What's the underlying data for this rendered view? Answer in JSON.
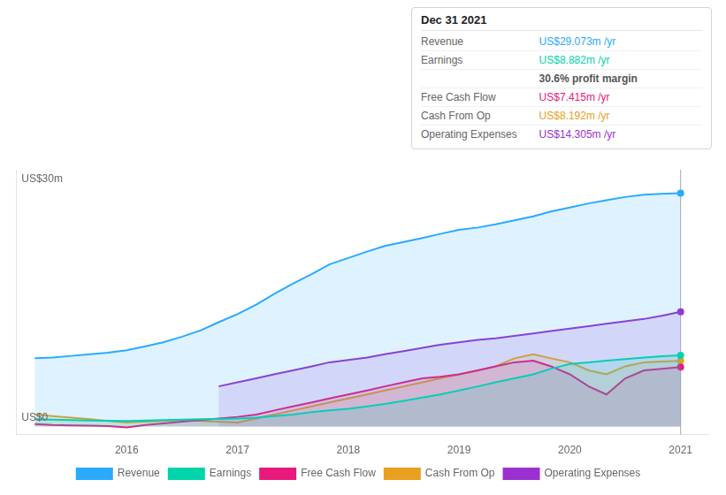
{
  "chart_data": {
    "type": "area",
    "xlim": [
      2015.0,
      2021.25
    ],
    "xticks": [
      2016,
      2017,
      2018,
      2019,
      2020,
      2021
    ],
    "ylim": [
      -1,
      32
    ],
    "tick_labels": "x",
    "grid": false,
    "legend": "bottom",
    "series": [
      {
        "name": "Revenue",
        "color": "#29aaff",
        "x": [
          2015.17,
          2015.33,
          2015.5,
          2015.67,
          2015.83,
          2016.0,
          2016.17,
          2016.33,
          2016.5,
          2016.67,
          2016.83,
          2017.0,
          2017.17,
          2017.33,
          2017.5,
          2017.67,
          2017.83,
          2018.0,
          2018.17,
          2018.33,
          2018.5,
          2018.67,
          2018.83,
          2019.0,
          2019.17,
          2019.33,
          2019.5,
          2019.67,
          2019.83,
          2020.0,
          2020.17,
          2020.33,
          2020.5,
          2020.67,
          2020.83,
          2021.0
        ],
        "values": [
          8.5,
          8.6,
          8.8,
          9.0,
          9.2,
          9.5,
          10.0,
          10.5,
          11.2,
          12.0,
          13.0,
          14.0,
          15.2,
          16.5,
          17.8,
          19.0,
          20.2,
          21.0,
          21.8,
          22.5,
          23.0,
          23.5,
          24.0,
          24.5,
          24.8,
          25.2,
          25.7,
          26.2,
          26.8,
          27.3,
          27.8,
          28.2,
          28.6,
          28.9,
          29.0,
          29.073
        ]
      },
      {
        "name": "Earnings",
        "color": "#00d4aa",
        "x": [
          2015.17,
          2015.33,
          2015.5,
          2015.67,
          2015.83,
          2016.0,
          2016.17,
          2016.33,
          2016.5,
          2016.67,
          2016.83,
          2017.0,
          2017.17,
          2017.33,
          2017.5,
          2017.67,
          2017.83,
          2018.0,
          2018.17,
          2018.33,
          2018.5,
          2018.67,
          2018.83,
          2019.0,
          2019.17,
          2019.33,
          2019.5,
          2019.67,
          2019.83,
          2020.0,
          2020.17,
          2020.33,
          2020.5,
          2020.67,
          2020.83,
          2021.0
        ],
        "values": [
          0.9,
          0.85,
          0.8,
          0.75,
          0.72,
          0.7,
          0.75,
          0.8,
          0.85,
          0.9,
          0.95,
          1.0,
          1.1,
          1.3,
          1.5,
          1.8,
          2.0,
          2.2,
          2.5,
          2.8,
          3.2,
          3.6,
          4.0,
          4.5,
          5.0,
          5.5,
          6.0,
          6.5,
          7.2,
          7.8,
          8.0,
          8.2,
          8.4,
          8.6,
          8.75,
          8.882
        ]
      },
      {
        "name": "Free Cash Flow",
        "color": "#e8197d",
        "x": [
          2015.17,
          2015.33,
          2015.5,
          2015.67,
          2015.83,
          2016.0,
          2016.17,
          2016.33,
          2016.5,
          2016.67,
          2016.83,
          2017.0,
          2017.17,
          2017.33,
          2017.5,
          2017.67,
          2017.83,
          2018.0,
          2018.17,
          2018.33,
          2018.5,
          2018.67,
          2018.83,
          2019.0,
          2019.17,
          2019.33,
          2019.5,
          2019.67,
          2019.83,
          2020.0,
          2020.17,
          2020.33,
          2020.5,
          2020.67,
          2020.83,
          2021.0
        ],
        "values": [
          0.3,
          0.2,
          0.15,
          0.1,
          0.05,
          -0.1,
          0.2,
          0.4,
          0.6,
          0.8,
          1.0,
          1.2,
          1.5,
          2.0,
          2.5,
          3.0,
          3.5,
          4.0,
          4.5,
          5.0,
          5.5,
          6.0,
          6.2,
          6.5,
          7.0,
          7.5,
          8.0,
          8.2,
          7.5,
          6.5,
          5.0,
          4.0,
          6.0,
          7.0,
          7.2,
          7.415
        ]
      },
      {
        "name": "Cash From Op",
        "color": "#e8a020",
        "x": [
          2015.17,
          2015.33,
          2015.5,
          2015.67,
          2015.83,
          2016.0,
          2016.17,
          2016.33,
          2016.5,
          2016.67,
          2016.83,
          2017.0,
          2017.17,
          2017.33,
          2017.5,
          2017.67,
          2017.83,
          2018.0,
          2018.17,
          2018.33,
          2018.5,
          2018.67,
          2018.83,
          2019.0,
          2019.17,
          2019.33,
          2019.5,
          2019.67,
          2019.83,
          2020.0,
          2020.17,
          2020.33,
          2020.5,
          2020.67,
          2020.83,
          2021.0
        ],
        "values": [
          1.5,
          1.3,
          1.1,
          0.9,
          0.7,
          0.5,
          0.6,
          0.7,
          0.8,
          0.7,
          0.6,
          0.5,
          1.0,
          1.5,
          2.0,
          2.5,
          3.0,
          3.5,
          4.0,
          4.5,
          5.0,
          5.5,
          6.0,
          6.5,
          7.0,
          7.5,
          8.5,
          9.0,
          8.5,
          8.0,
          7.0,
          6.5,
          7.5,
          8.0,
          8.1,
          8.192
        ]
      },
      {
        "name": "Operating Expenses",
        "color": "#9b30d0",
        "x": [
          2016.83,
          2017.0,
          2017.17,
          2017.33,
          2017.5,
          2017.67,
          2017.83,
          2018.0,
          2018.17,
          2018.33,
          2018.5,
          2018.67,
          2018.83,
          2019.0,
          2019.17,
          2019.33,
          2019.5,
          2019.67,
          2019.83,
          2020.0,
          2020.17,
          2020.33,
          2020.5,
          2020.67,
          2020.83,
          2021.0
        ],
        "values": [
          5.0,
          5.5,
          6.0,
          6.5,
          7.0,
          7.5,
          8.0,
          8.3,
          8.6,
          9.0,
          9.4,
          9.8,
          10.2,
          10.5,
          10.8,
          11.0,
          11.3,
          11.6,
          11.9,
          12.2,
          12.5,
          12.8,
          13.1,
          13.4,
          13.8,
          14.305
        ]
      }
    ],
    "annotations": [
      {
        "text": "US$30m",
        "x": 2015.05,
        "y": 30.2
      },
      {
        "text": "US$0",
        "x": 2015.05,
        "y": 0.4
      }
    ],
    "vline": 2021.0,
    "tooltip": {
      "title": "Dec 31 2021",
      "rows": [
        {
          "label": "Revenue",
          "value": "US$29.073m /yr",
          "color": "#29aaff"
        },
        {
          "label": "Earnings",
          "value": "US$8.882m /yr",
          "color": "#00d4aa"
        },
        {
          "value": "30.6% profit margin",
          "color": "#555555"
        },
        {
          "label": "Free Cash Flow",
          "value": "US$7.415m /yr",
          "color": "#e8197d"
        },
        {
          "label": "Cash From Op",
          "value": "US$8.192m /yr",
          "color": "#e8a020"
        },
        {
          "label": "Operating Expenses",
          "value": "US$14.305m /yr",
          "color": "#9b30d0"
        }
      ]
    }
  }
}
